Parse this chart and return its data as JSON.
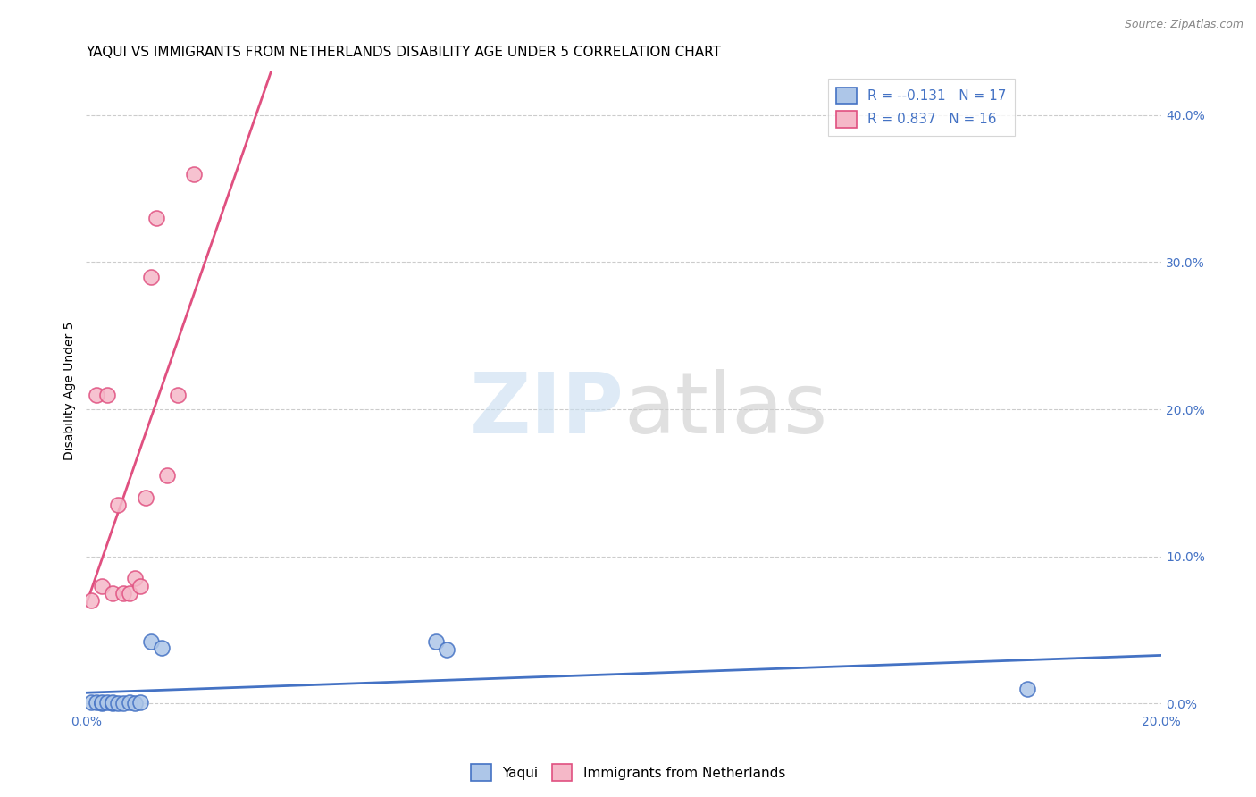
{
  "title": "YAQUI VS IMMIGRANTS FROM NETHERLANDS DISABILITY AGE UNDER 5 CORRELATION CHART",
  "source": "Source: ZipAtlas.com",
  "ylabel": "Disability Age Under 5",
  "ylabel_right_ticks": [
    "0.0%",
    "10.0%",
    "20.0%",
    "30.0%",
    "40.0%"
  ],
  "ylabel_right_vals": [
    0.0,
    0.1,
    0.2,
    0.3,
    0.4
  ],
  "xlim": [
    0.0,
    0.2
  ],
  "ylim": [
    -0.005,
    0.43
  ],
  "yaqui_x": [
    0.001,
    0.002,
    0.003,
    0.003,
    0.004,
    0.005,
    0.005,
    0.006,
    0.007,
    0.008,
    0.009,
    0.01,
    0.012,
    0.014,
    0.065,
    0.067,
    0.175
  ],
  "yaqui_y": [
    0.001,
    0.001,
    0.0,
    0.001,
    0.001,
    0.0,
    0.001,
    0.0,
    0.0,
    0.001,
    0.0,
    0.001,
    0.042,
    0.038,
    0.042,
    0.037,
    0.01
  ],
  "netherlands_x": [
    0.001,
    0.002,
    0.003,
    0.004,
    0.005,
    0.006,
    0.007,
    0.008,
    0.009,
    0.01,
    0.011,
    0.012,
    0.013,
    0.015,
    0.017,
    0.02
  ],
  "netherlands_y": [
    0.07,
    0.21,
    0.08,
    0.21,
    0.075,
    0.135,
    0.075,
    0.075,
    0.085,
    0.08,
    0.14,
    0.29,
    0.33,
    0.155,
    0.21,
    0.36
  ],
  "yaqui_color": "#adc6e8",
  "netherlands_color": "#f5b8c8",
  "yaqui_line_color": "#4472c4",
  "netherlands_line_color": "#e05080",
  "legend_r_yaqui": "-0.131",
  "legend_n_yaqui": "17",
  "legend_r_neth": "0.837",
  "legend_n_neth": "16",
  "legend_label_yaqui": "Yaqui",
  "legend_label_neth": "Immigrants from Netherlands",
  "title_fontsize": 11,
  "axis_label_fontsize": 10,
  "tick_fontsize": 10,
  "legend_fontsize": 11
}
